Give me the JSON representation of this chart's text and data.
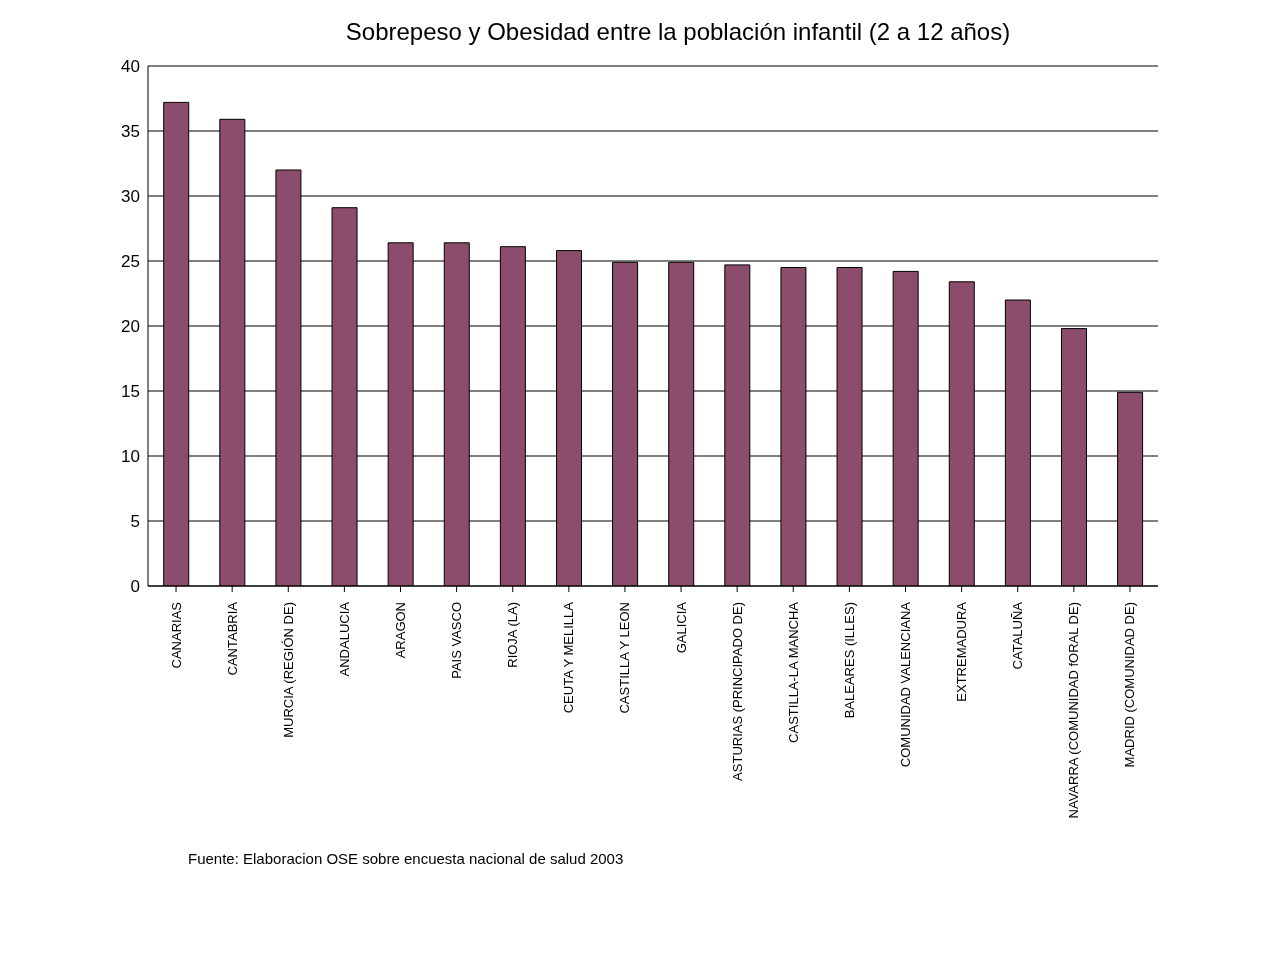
{
  "chart_data": {
    "type": "bar",
    "title": "Sobrepeso y Obesidad entre la población infantil (2 a 12 años)",
    "categories": [
      "CANARIAS",
      "CANTABRIA",
      "MURCIA (REGIÓN DE)",
      "ANDALUCIA",
      "ARAGON",
      "PAIS VASCO",
      "RIOJA (LA)",
      "CEUTA Y MELILLA",
      "CASTILLA Y LEON",
      "GALICIA",
      "ASTURIAS (PRINCIPADO DE)",
      "CASTILLA-LA MANCHA",
      "BALEARES (ILLES)",
      "COMUNIDAD VALENCIANA",
      "EXTREMADURA",
      "CATALUÑA",
      "NAVARRA (COMUNIDAD fORAL DE)",
      "MADRID (COMUNIDAD DE)"
    ],
    "values": [
      37.2,
      35.9,
      32.0,
      29.1,
      26.4,
      26.4,
      26.1,
      25.8,
      24.9,
      24.9,
      24.7,
      24.5,
      24.5,
      24.2,
      23.4,
      22.0,
      19.8,
      14.9
    ],
    "color": "#8b4d6b",
    "ylim": [
      0,
      40
    ],
    "yticks": [
      0,
      5,
      10,
      15,
      20,
      25,
      30,
      35,
      40
    ],
    "grid": "y",
    "annotations": [
      "Fuente: Elaboracion OSE sobre encuesta nacional de salud 2003"
    ]
  }
}
